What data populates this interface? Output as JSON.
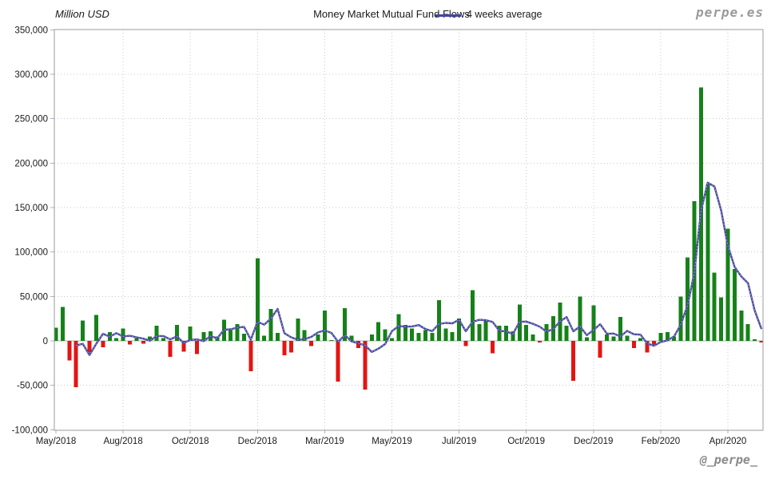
{
  "header": {
    "y_axis_title": "Million USD",
    "title": "Money Market Mutual Fund Flows",
    "legend_label": "4 weeks average",
    "watermark_top": "perpe.es",
    "watermark_bottom": "@_perpe_"
  },
  "colors": {
    "positive_bar": "#168119",
    "negative_bar": "#e31513",
    "average_line": "#45459c",
    "average_line_core": "#a3a3d8",
    "grid": "#c9c9c9",
    "zero_line": "#b0b0b0",
    "frame": "#9b9b9b",
    "axis_tick": "#9db8cf",
    "text": "#1a1a1a"
  },
  "chart_data": {
    "type": "bar",
    "title": "Money Market Mutual Fund Flows",
    "unit": "Million USD",
    "frequency": "weekly",
    "ylim": [
      -100000,
      350000
    ],
    "y_tick_step": 50000,
    "grid": "dotted",
    "legend_position": "top",
    "series": [
      {
        "name": "Money Market Mutual Fund Flows",
        "type": "bar",
        "values": [
          15000,
          38000,
          -22000,
          -52000,
          23000,
          -13000,
          29000,
          -7000,
          10000,
          3000,
          14000,
          -4000,
          3000,
          -3000,
          5000,
          17000,
          3000,
          -18000,
          18000,
          -12000,
          16000,
          -15000,
          10000,
          11000,
          5000,
          24000,
          12000,
          19000,
          8000,
          -34000,
          93000,
          6000,
          36000,
          9000,
          -16000,
          -13000,
          25000,
          12000,
          -6000,
          7000,
          34000,
          1000,
          -46000,
          37000,
          6000,
          -8000,
          -55000,
          7000,
          21000,
          13000,
          3000,
          30000,
          18000,
          14000,
          9000,
          12000,
          9000,
          46000,
          14000,
          10000,
          25000,
          -6000,
          57000,
          19000,
          23000,
          -14000,
          17000,
          17000,
          11000,
          41000,
          18000,
          7000,
          -2000,
          19000,
          28000,
          43000,
          17000,
          -45000,
          50000,
          4000,
          40000,
          -19000,
          7000,
          5000,
          27000,
          6000,
          -8000,
          3000,
          -13000,
          -4000,
          9000,
          10000,
          5000,
          50000,
          94000,
          157000,
          285000,
          176000,
          77000,
          49000,
          126000,
          81000,
          34000,
          19000,
          2000,
          -2000
        ]
      },
      {
        "name": "4 weeks average",
        "type": "line",
        "derived": "rolling mean of previous 4 weekly values"
      }
    ],
    "x_tick_labels": [
      "May/2018",
      "Aug/2018",
      "Oct/2018",
      "Dec/2018",
      "Mar/2019",
      "May/2019",
      "Jul/2019",
      "Oct/2019",
      "Dec/2019",
      "Feb/2020",
      "Apr/2020"
    ],
    "x_tick_indices": [
      0,
      10,
      20,
      30,
      40,
      50,
      60,
      70,
      80,
      90,
      100
    ]
  }
}
